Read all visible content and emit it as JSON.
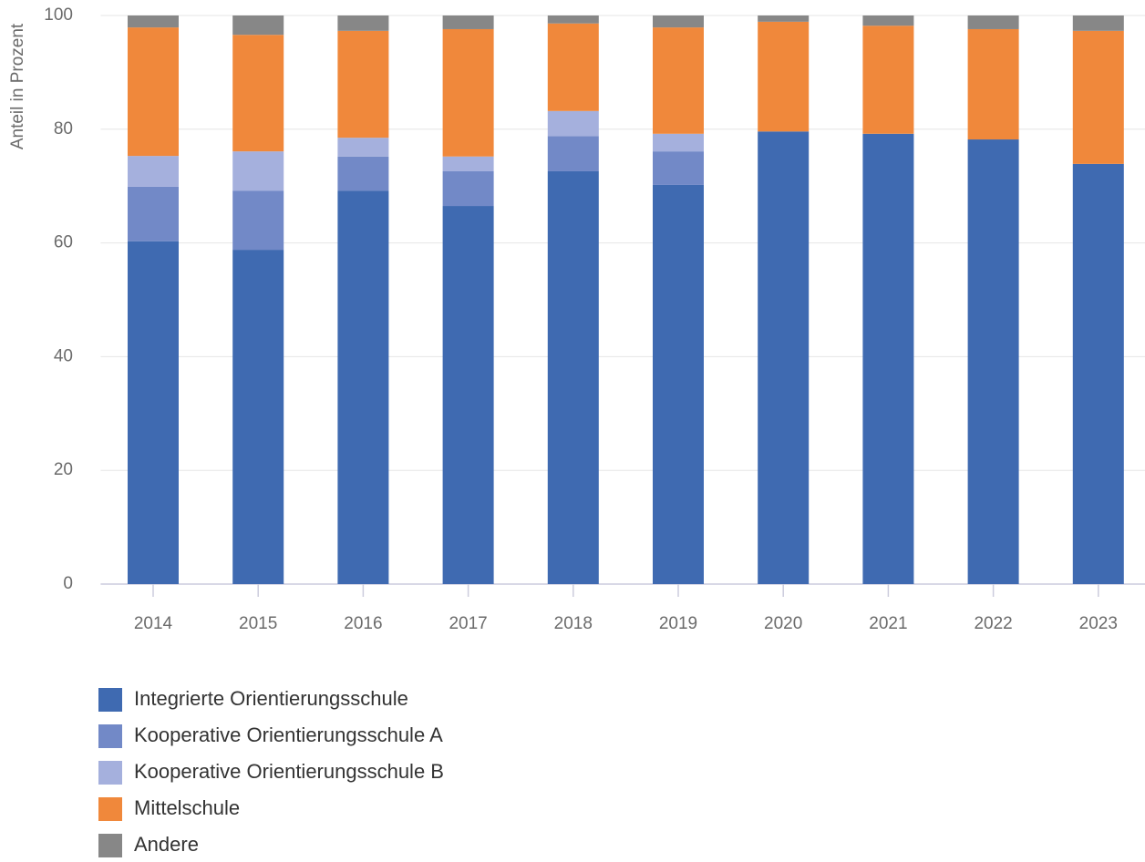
{
  "chart_data": {
    "type": "stacked_bar",
    "ylabel": "Anteil in Prozent",
    "categories": [
      "2014",
      "2015",
      "2016",
      "2017",
      "2018",
      "2019",
      "2020",
      "2021",
      "2022",
      "2023"
    ],
    "series": [
      {
        "name": "Integrierte Orientierungsschule",
        "color": "#3f6ab1",
        "values": [
          60.3,
          58.8,
          69.2,
          66.5,
          72.6,
          70.2,
          79.6,
          79.2,
          78.2,
          73.9
        ]
      },
      {
        "name": "Kooperative Orientierungsschule A",
        "color": "#7289c7",
        "values": [
          9.6,
          10.4,
          6.0,
          6.1,
          6.2,
          5.9,
          0,
          0,
          0,
          0
        ]
      },
      {
        "name": "Kooperative Orientierungsschule B",
        "color": "#a5b0dd",
        "values": [
          5.4,
          6.9,
          3.3,
          2.6,
          4.4,
          3.1,
          0,
          0,
          0,
          0
        ]
      },
      {
        "name": "Mittelschule",
        "color": "#f0883b",
        "values": [
          22.6,
          20.5,
          18.8,
          22.4,
          15.4,
          18.7,
          19.3,
          19.0,
          19.4,
          23.4
        ]
      },
      {
        "name": "Andere",
        "color": "#878787",
        "values": [
          2.1,
          3.4,
          2.7,
          2.4,
          1.4,
          2.1,
          1.1,
          1.8,
          2.4,
          2.7
        ]
      }
    ],
    "ylim": [
      0,
      100
    ],
    "yticks": [
      0,
      20,
      40,
      60,
      80,
      100
    ],
    "grid": true,
    "legend": "bottom"
  }
}
